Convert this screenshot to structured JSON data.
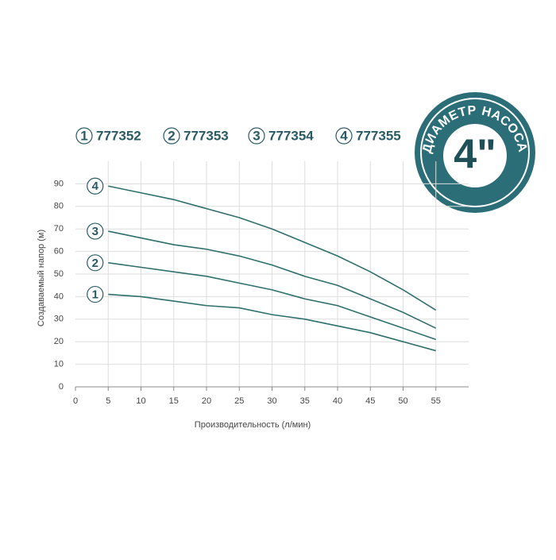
{
  "chart_data": {
    "type": "line",
    "xlabel": "Производительность (л/мин)",
    "ylabel": "Создаваемый напор (м)",
    "x": [
      5,
      10,
      15,
      20,
      25,
      30,
      35,
      40,
      45,
      50,
      55
    ],
    "series": [
      {
        "label": "1",
        "name": "777352",
        "color": "#2f6f6c",
        "values": [
          41,
          40,
          38,
          36,
          35,
          32,
          30,
          27,
          24,
          20,
          16
        ]
      },
      {
        "label": "2",
        "name": "777353",
        "color": "#2f6f6c",
        "values": [
          55,
          53,
          51,
          49,
          46,
          43,
          39,
          36,
          31,
          26,
          21
        ]
      },
      {
        "label": "3",
        "name": "777354",
        "color": "#2f6f6c",
        "values": [
          69,
          66,
          63,
          61,
          58,
          54,
          49,
          45,
          39,
          33,
          26
        ]
      },
      {
        "label": "4",
        "name": "777355",
        "color": "#2f6f6c",
        "values": [
          89,
          86,
          83,
          79,
          75,
          70,
          64,
          58,
          51,
          43,
          34
        ]
      }
    ],
    "xlim": [
      0,
      60
    ],
    "xticks": [
      0,
      5,
      10,
      15,
      20,
      25,
      30,
      35,
      40,
      45,
      50,
      55
    ],
    "ylim": [
      0,
      100
    ],
    "yticks": [
      0,
      10,
      20,
      30,
      40,
      50,
      60,
      70,
      80,
      90
    ],
    "grid": true
  },
  "badge": {
    "title": "ДИАМЕТР НАСОСА",
    "size": "4\""
  }
}
